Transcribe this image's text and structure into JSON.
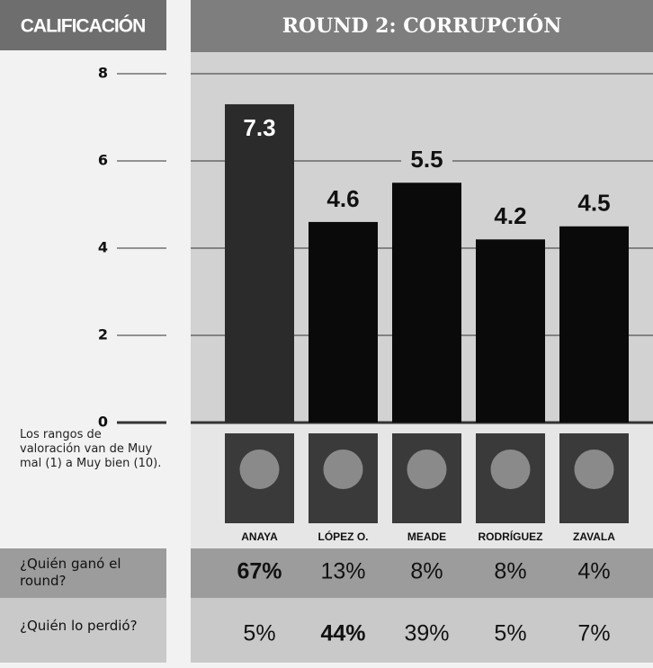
{
  "chart_data": {
    "type": "bar",
    "title": "ROUND 2: CORRUPCIÓN",
    "axis_title": "CALIFICACIÓN",
    "categories": [
      "ANAYA",
      "LÓPEZ O.",
      "MEADE",
      "RODRÍGUEZ",
      "ZAVALA"
    ],
    "values": [
      7.3,
      4.6,
      5.5,
      4.2,
      4.5
    ],
    "colors": [
      "#2b2b2b",
      "#0a0a0a",
      "#0a0a0a",
      "#0a0a0a",
      "#0a0a0a"
    ],
    "ylim": [
      0,
      8
    ],
    "yticks": [
      0,
      2,
      4,
      6,
      8
    ],
    "grid": true,
    "note": "Los rangos de valoración van de Muy mal (1) a Muy bien (10)."
  },
  "table": {
    "rows": [
      {
        "label": "¿Quién ganó el round?",
        "cells": [
          "67%",
          "13%",
          "8%",
          "8%",
          "4%"
        ],
        "bold": 0
      },
      {
        "label": "¿Quién lo perdió?",
        "cells": [
          "5%",
          "44%",
          "39%",
          "5%",
          "7%"
        ],
        "bold": 1
      }
    ]
  }
}
